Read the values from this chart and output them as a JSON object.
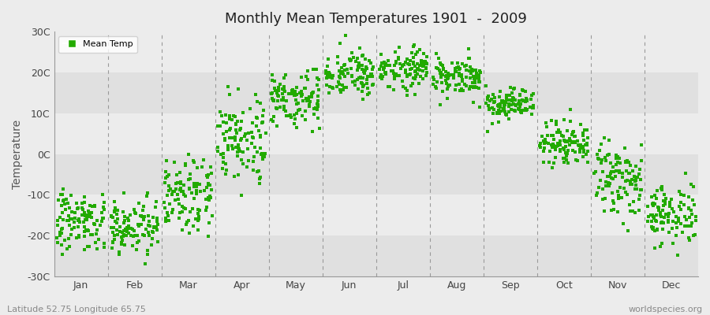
{
  "title": "Monthly Mean Temperatures 1901  -  2009",
  "ylabel": "Temperature",
  "xlabel_bottom_left": "Latitude 52.75 Longitude 65.75",
  "xlabel_bottom_right": "worldspecies.org",
  "legend_label": "Mean Temp",
  "dot_color": "#22aa00",
  "bg_light": "#ececec",
  "bg_dark": "#e0e0e0",
  "fig_bg": "#ececec",
  "ylim": [
    -30,
    30
  ],
  "yticks": [
    -30,
    -20,
    -10,
    0,
    10,
    20,
    30
  ],
  "ytick_labels": [
    "-30C",
    "-20C",
    "-10C",
    "0C",
    "10C",
    "20C",
    "30C"
  ],
  "months": [
    "Jan",
    "Feb",
    "Mar",
    "Apr",
    "May",
    "Jun",
    "Jul",
    "Aug",
    "Sep",
    "Oct",
    "Nov",
    "Dec"
  ],
  "mean_temps": [
    -16.5,
    -17.5,
    -9.0,
    4.0,
    14.0,
    19.5,
    21.0,
    19.0,
    12.0,
    3.0,
    -6.5,
    -14.5
  ],
  "std_temps": [
    3.5,
    3.5,
    4.5,
    5.0,
    3.5,
    3.0,
    2.5,
    2.5,
    2.0,
    3.0,
    4.0,
    4.0
  ],
  "n_points": 109
}
